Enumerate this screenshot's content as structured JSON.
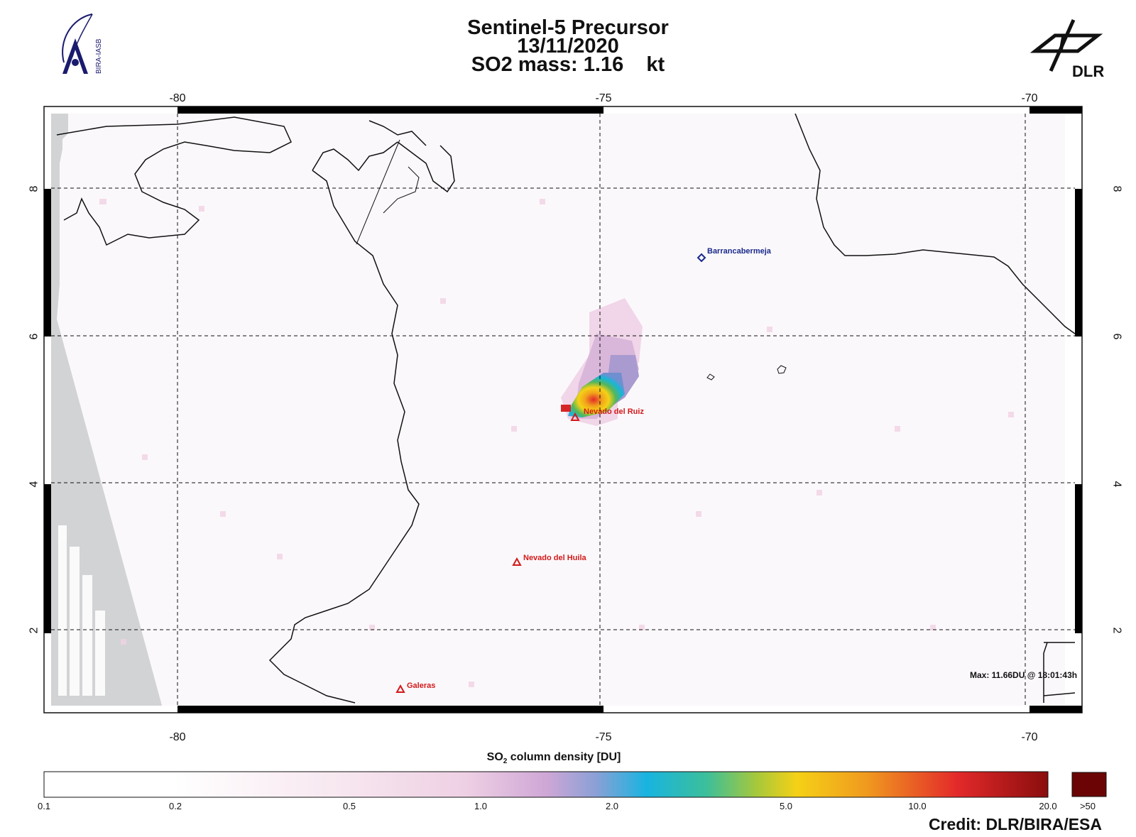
{
  "header": {
    "title": "Sentinel-5 Precursor",
    "date": "13/11/2020",
    "mass_label": "SO2 mass: 1.16    kt"
  },
  "logos": {
    "left_text": "BIRA-IASB",
    "right_text": "DLR"
  },
  "map": {
    "x_ticks_top": [
      "-80",
      "-75",
      "-70"
    ],
    "x_ticks_bottom": [
      "-80",
      "-75",
      "-70"
    ],
    "y_ticks_left": [
      "8",
      "6",
      "4",
      "2"
    ],
    "y_ticks_right": [
      "8",
      "6",
      "4",
      "2"
    ],
    "lon_range": [
      -81.57,
      -69.15
    ],
    "lat_range": [
      0.77,
      9.05
    ],
    "markers": [
      {
        "name": "Barrancabermeja",
        "kind": "city",
        "lon": -73.85,
        "lat": 7.07
      },
      {
        "name": "Nevado del Ruiz",
        "kind": "volcano",
        "lon": -75.32,
        "lat": 4.89
      },
      {
        "name": "Nevado del Huila",
        "kind": "volcano",
        "lon": -76.03,
        "lat": 2.92
      },
      {
        "name": "Galeras",
        "kind": "volcano",
        "lon": -77.37,
        "lat": 1.22
      }
    ],
    "max_label": "Max:  11.66DU @ 18:01:43h",
    "colors": {
      "city": "#1a2a8a",
      "volcano": "#d11a1a",
      "no_data": "#d2d3d5"
    }
  },
  "colorbar": {
    "title_main": "SO",
    "title_sub": "2",
    "title_rest": " column density [DU]",
    "ticks": [
      "0.1",
      "0.2",
      "0.5",
      "1.0",
      "2.0",
      "5.0",
      "10.0",
      "20.0",
      ">50"
    ],
    "overflow_color": "#6b0505"
  },
  "credit": "Credit: DLR/BIRA/ESA"
}
